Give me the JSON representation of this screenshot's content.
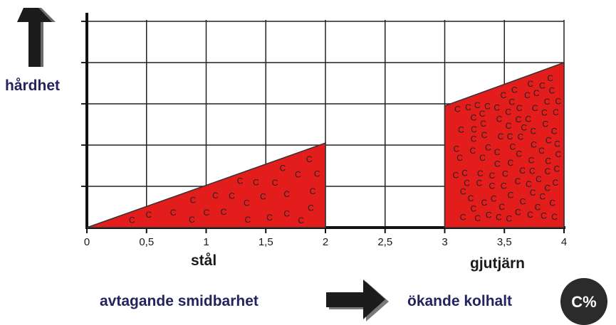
{
  "colors": {
    "fill": "#e31c1c",
    "grid": "#222222",
    "navy": "#23235f",
    "arrow": "#1c1c1c",
    "badge": "#2b2b2b"
  },
  "labels": {
    "hardness": "hårdhet",
    "steel": "stål",
    "cast_iron": "gjutjärn",
    "decreasing_malleability": "avtagande smidbarhet",
    "increasing_carbon": "ökande kolhalt",
    "carbon_badge": "C%",
    "carbon_symbol": "C"
  },
  "icons": {
    "up_arrow": "up-arrow-icon",
    "right_arrow": "right-arrow-icon"
  },
  "chart_data": {
    "type": "area",
    "x_ticks": [
      "0",
      "0,5",
      "1",
      "1,5",
      "2",
      "2,5",
      "3",
      "3,5",
      "4"
    ],
    "x_tick_values": [
      0,
      0.5,
      1,
      1.5,
      2,
      2.5,
      3,
      3.5,
      4
    ],
    "xlim": [
      0,
      4
    ],
    "ylim": [
      0,
      5
    ],
    "y_gridlines": [
      1,
      2,
      3,
      4,
      5
    ],
    "grid": true,
    "ylabel": "hårdhet",
    "series": [
      {
        "name": "stål",
        "x": [
          0,
          2
        ],
        "y": [
          0,
          2.05
        ]
      },
      {
        "name": "gjutjärn",
        "x": [
          3,
          4
        ],
        "y": [
          2.95,
          4.0
        ]
      }
    ]
  }
}
